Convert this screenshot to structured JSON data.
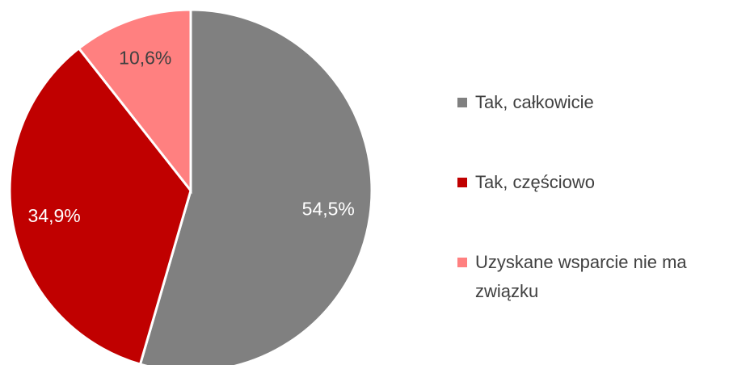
{
  "chart_data": {
    "type": "pie",
    "categories": [
      "Tak, całkowicie",
      "Tak, częściowo",
      "Uzyskane wsparcie nie ma związku"
    ],
    "values": [
      54.5,
      34.9,
      10.6
    ],
    "value_labels": [
      "54,5%",
      "34,9%",
      "10,6%"
    ],
    "colors": [
      "#808080",
      "#c00000",
      "#ff8080"
    ],
    "label_colors": [
      "#ffffff",
      "#ffffff",
      "#404040"
    ],
    "legend": "right"
  }
}
